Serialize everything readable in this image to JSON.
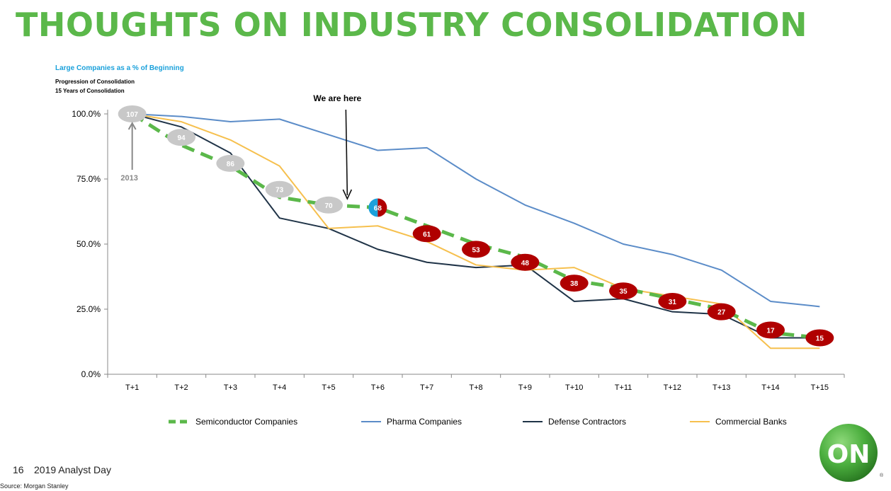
{
  "slide": {
    "title": "THOUGHTS ON INDUSTRY CONSOLIDATION",
    "page_number": "16",
    "event": "2019 Analyst Day",
    "source": "Source: Morgan Stanley",
    "logo_text": "ON",
    "registered_mark": "®",
    "brand_color": "#5bb84a"
  },
  "chart_data": {
    "type": "line",
    "title": "Large Companies as a % of Beginning",
    "subtitle_lines": [
      "Progression of Consolidation",
      "15 Years of Consolidation"
    ],
    "categories": [
      "T+1",
      "T+2",
      "T+3",
      "T+4",
      "T+5",
      "T+6",
      "T+7",
      "T+8",
      "T+9",
      "T+10",
      "T+11",
      "T+12",
      "T+13",
      "T+14",
      "T+15"
    ],
    "ylim": [
      0,
      100
    ],
    "yticks": [
      0,
      25,
      50,
      75,
      100
    ],
    "ytick_labels": [
      "0.0%",
      "25.0%",
      "50.0%",
      "75.0%",
      "100.0%"
    ],
    "grid": false,
    "legend_position": "bottom",
    "series": [
      {
        "name": "Semiconductor Companies",
        "color": "#5bb84a",
        "style": "dashed",
        "values": [
          100,
          88,
          80,
          68,
          65,
          64,
          57,
          50,
          45,
          36,
          33,
          29,
          25,
          16,
          14
        ]
      },
      {
        "name": "Pharma Companies",
        "color": "#5b8cc8",
        "style": "solid",
        "values": [
          100,
          99,
          97,
          98,
          92,
          86,
          87,
          75,
          65,
          58,
          50,
          46,
          40,
          28,
          26
        ]
      },
      {
        "name": "Defense Contractors",
        "color": "#1f3347",
        "style": "solid",
        "values": [
          100,
          95,
          85,
          60,
          56,
          48,
          43,
          41,
          42,
          28,
          29,
          24,
          23,
          14,
          14
        ]
      },
      {
        "name": "Commercial Banks",
        "color": "#f6c04e",
        "style": "solid",
        "values": [
          100,
          97,
          90,
          80,
          56,
          57,
          51,
          42,
          40,
          41,
          33,
          30,
          27,
          10,
          10
        ]
      }
    ],
    "company_counts": {
      "labels": [
        "107",
        "94",
        "86",
        "73",
        "70",
        "68",
        "61",
        "53",
        "48",
        "38",
        "35",
        "31",
        "27",
        "17",
        "15"
      ],
      "y_values": [
        100,
        91,
        81,
        71,
        65,
        64,
        54,
        48,
        43,
        35,
        32,
        28,
        24,
        17,
        14
      ],
      "past_color": "#c8c8c8",
      "future_color": "#b00000",
      "current_color": "#1ba1db",
      "current_index": 5
    },
    "annotations": [
      {
        "text": "We are here",
        "category": "T+6"
      },
      {
        "text": "2013",
        "category": "T+1"
      }
    ]
  }
}
